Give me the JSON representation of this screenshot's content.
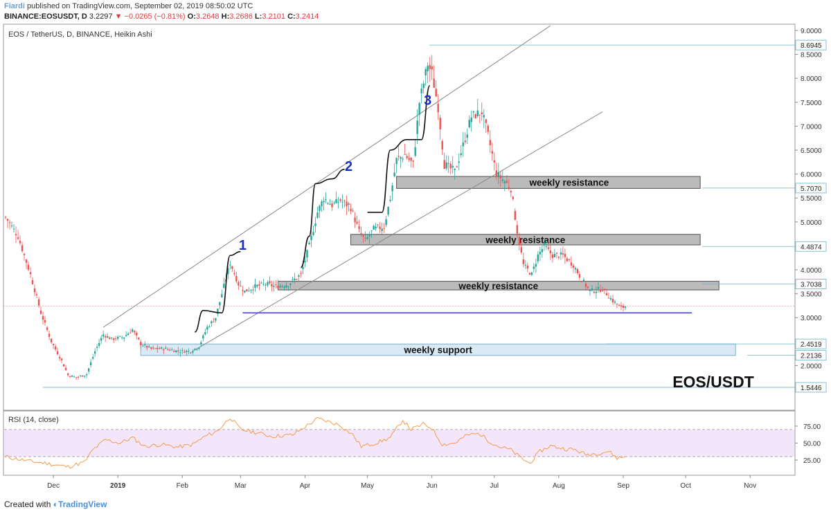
{
  "header": {
    "author": "Fiardi",
    "published": "published on TradingView.com, September 02, 2019 08:50:02 UTC",
    "symbol": "BINANCE:EOSUSDT, D",
    "last": "3.2297",
    "change": "−0.0265 (−0.81%)",
    "open_label": "O:",
    "open": "3.2648",
    "high_label": "H:",
    "high": "3.2686",
    "low_label": "L:",
    "low": "3.2101",
    "close_label": "C:",
    "close": "3.2414"
  },
  "footer": {
    "created_with": "Created with",
    "brand": "TradingView"
  },
  "colors": {
    "up": "#26a69a",
    "down": "#ef5350",
    "rsi": "#f39c4a",
    "rsi_band": "#f3e6fa",
    "zone_gray": "#b0b0b0",
    "zone_blue": "#d6e8f5",
    "support_line": "#3c3cd0"
  },
  "chart_data": [
    {
      "type": "candlestick",
      "title": "EOS / TetherUS, D, BINANCE, Heikin Ashi",
      "watermark": "EOS/USDT",
      "x_start": "2018-11-08",
      "x_end": "2019-09-02",
      "ylim": [
        1.5,
        9.0
      ],
      "y_ticks": [
        "9.0000",
        "8.5000",
        "8.0000",
        "7.5000",
        "7.0000",
        "6.5000",
        "6.0000",
        "5.5000",
        "5.0000",
        "4.5000",
        "4.0000",
        "3.5000",
        "3.0000",
        "2.5000",
        "2.0000"
      ],
      "x_ticks": [
        "Dec",
        "2019",
        "Feb",
        "Mar",
        "Apr",
        "May",
        "Jun",
        "Jul",
        "Aug",
        "Sep",
        "Oct",
        "Nov"
      ],
      "price_labels": [
        "8.6945",
        "5.7070",
        "4.4874",
        "3.7038",
        "2.4519",
        "2.2136",
        "1.5446"
      ],
      "current_price": "3.2414",
      "price_path": [
        [
          "2018-11-08",
          5.1
        ],
        [
          "2018-11-14",
          4.7
        ],
        [
          "2018-11-20",
          3.9
        ],
        [
          "2018-11-25",
          3.1
        ],
        [
          "2018-11-30",
          2.5
        ],
        [
          "2018-12-05",
          2.1
        ],
        [
          "2018-12-08",
          1.8
        ],
        [
          "2018-12-12",
          1.75
        ],
        [
          "2018-12-17",
          1.82
        ],
        [
          "2018-12-21",
          2.3
        ],
        [
          "2018-12-25",
          2.65
        ],
        [
          "2018-12-29",
          2.55
        ],
        [
          "2019-01-04",
          2.6
        ],
        [
          "2019-01-08",
          2.75
        ],
        [
          "2019-01-12",
          2.45
        ],
        [
          "2019-01-17",
          2.35
        ],
        [
          "2019-01-24",
          2.35
        ],
        [
          "2019-01-30",
          2.3
        ],
        [
          "2019-02-05",
          2.3
        ],
        [
          "2019-02-09",
          2.4
        ],
        [
          "2019-02-13",
          2.8
        ],
        [
          "2019-02-17",
          3.0
        ],
        [
          "2019-02-20",
          3.5
        ],
        [
          "2019-02-24",
          4.15
        ],
        [
          "2019-02-28",
          3.7
        ],
        [
          "2019-03-03",
          3.55
        ],
        [
          "2019-03-08",
          3.65
        ],
        [
          "2019-03-13",
          3.7
        ],
        [
          "2019-03-18",
          3.65
        ],
        [
          "2019-03-24",
          3.7
        ],
        [
          "2019-03-30",
          3.9
        ],
        [
          "2019-04-03",
          4.5
        ],
        [
          "2019-04-07",
          5.2
        ],
        [
          "2019-04-10",
          5.5
        ],
        [
          "2019-04-14",
          5.35
        ],
        [
          "2019-04-18",
          5.45
        ],
        [
          "2019-04-23",
          5.3
        ],
        [
          "2019-04-27",
          4.8
        ],
        [
          "2019-04-30",
          4.6
        ],
        [
          "2019-05-04",
          4.85
        ],
        [
          "2019-05-09",
          4.9
        ],
        [
          "2019-05-12",
          5.5
        ],
        [
          "2019-05-15",
          6.3
        ],
        [
          "2019-05-19",
          6.4
        ],
        [
          "2019-05-23",
          6.2
        ],
        [
          "2019-05-26",
          7.5
        ],
        [
          "2019-05-30",
          8.3
        ],
        [
          "2019-06-01",
          8.1
        ],
        [
          "2019-06-04",
          7.4
        ],
        [
          "2019-06-07",
          6.2
        ],
        [
          "2019-06-12",
          6.05
        ],
        [
          "2019-06-16",
          6.6
        ],
        [
          "2019-06-20",
          7.2
        ],
        [
          "2019-06-25",
          7.3
        ],
        [
          "2019-06-28",
          6.8
        ],
        [
          "2019-07-02",
          6.0
        ],
        [
          "2019-07-06",
          5.85
        ],
        [
          "2019-07-09",
          5.7
        ],
        [
          "2019-07-12",
          4.8
        ],
        [
          "2019-07-15",
          4.1
        ],
        [
          "2019-07-19",
          3.9
        ],
        [
          "2019-07-22",
          4.3
        ],
        [
          "2019-07-25",
          4.5
        ],
        [
          "2019-07-29",
          4.3
        ],
        [
          "2019-08-03",
          4.3
        ],
        [
          "2019-08-08",
          4.1
        ],
        [
          "2019-08-12",
          3.8
        ],
        [
          "2019-08-16",
          3.55
        ],
        [
          "2019-08-22",
          3.6
        ],
        [
          "2019-08-27",
          3.35
        ],
        [
          "2019-08-31",
          3.2
        ],
        [
          "2019-09-02",
          3.24
        ]
      ],
      "zones": [
        {
          "label": "weekly resistance",
          "from": "2019-05-15",
          "to": "2019-10-08",
          "low": 5.7,
          "high": 5.95
        },
        {
          "label": "weekly resistance",
          "from": "2019-04-23",
          "to": "2019-10-08",
          "low": 4.52,
          "high": 4.74
        },
        {
          "label": "weekly resistance",
          "from": "2019-03-19",
          "to": "2019-10-17",
          "low": 3.58,
          "high": 3.76
        },
        {
          "label": "weekly support",
          "from": "2019-01-12",
          "to": "2019-10-25",
          "low": 2.21,
          "high": 2.45
        }
      ],
      "annotations": [
        {
          "text": "1",
          "x": "2019-03-02",
          "y": 4.42
        },
        {
          "text": "2",
          "x": "2019-04-22",
          "y": 6.07
        },
        {
          "text": "3",
          "x": "2019-05-30",
          "y": 7.45
        }
      ],
      "channel_lines": [
        {
          "from": [
            "2018-12-25",
            2.8
          ],
          "to": [
            "2019-07-28",
            9.1
          ]
        },
        {
          "from": [
            "2019-02-06",
            2.3
          ],
          "to": [
            "2019-08-22",
            7.3
          ]
        }
      ],
      "support_line": {
        "from": "2019-03-02",
        "to": "2019-10-04",
        "y": 3.1
      }
    },
    {
      "type": "line",
      "title": "RSI (14, close)",
      "ylim": [
        5,
        95
      ],
      "y_ticks": [
        "75.00",
        "50.00",
        "25.00"
      ],
      "band": [
        30,
        70
      ],
      "path": [
        [
          "2018-11-08",
          30
        ],
        [
          "2018-11-18",
          24
        ],
        [
          "2018-11-28",
          20
        ],
        [
          "2018-12-08",
          15
        ],
        [
          "2018-12-16",
          22
        ],
        [
          "2018-12-20",
          40
        ],
        [
          "2018-12-26",
          55
        ],
        [
          "2019-01-02",
          50
        ],
        [
          "2019-01-08",
          58
        ],
        [
          "2019-01-14",
          45
        ],
        [
          "2019-01-22",
          48
        ],
        [
          "2019-01-30",
          44
        ],
        [
          "2019-02-06",
          48
        ],
        [
          "2019-02-12",
          60
        ],
        [
          "2019-02-18",
          68
        ],
        [
          "2019-02-24",
          88
        ],
        [
          "2019-03-01",
          70
        ],
        [
          "2019-03-08",
          66
        ],
        [
          "2019-03-16",
          60
        ],
        [
          "2019-03-26",
          62
        ],
        [
          "2019-04-03",
          78
        ],
        [
          "2019-04-07",
          86
        ],
        [
          "2019-04-12",
          82
        ],
        [
          "2019-04-18",
          76
        ],
        [
          "2019-04-24",
          62
        ],
        [
          "2019-04-28",
          45
        ],
        [
          "2019-05-05",
          50
        ],
        [
          "2019-05-12",
          58
        ],
        [
          "2019-05-18",
          84
        ],
        [
          "2019-05-22",
          70
        ],
        [
          "2019-05-28",
          78
        ],
        [
          "2019-06-01",
          72
        ],
        [
          "2019-06-06",
          48
        ],
        [
          "2019-06-12",
          50
        ],
        [
          "2019-06-18",
          62
        ],
        [
          "2019-06-24",
          64
        ],
        [
          "2019-06-28",
          54
        ],
        [
          "2019-07-03",
          45
        ],
        [
          "2019-07-09",
          40
        ],
        [
          "2019-07-13",
          30
        ],
        [
          "2019-07-18",
          20
        ],
        [
          "2019-07-23",
          38
        ],
        [
          "2019-07-28",
          46
        ],
        [
          "2019-08-03",
          42
        ],
        [
          "2019-08-09",
          40
        ],
        [
          "2019-08-14",
          33
        ],
        [
          "2019-08-20",
          35
        ],
        [
          "2019-08-25",
          38
        ],
        [
          "2019-08-29",
          28
        ],
        [
          "2019-09-02",
          30
        ]
      ]
    }
  ]
}
